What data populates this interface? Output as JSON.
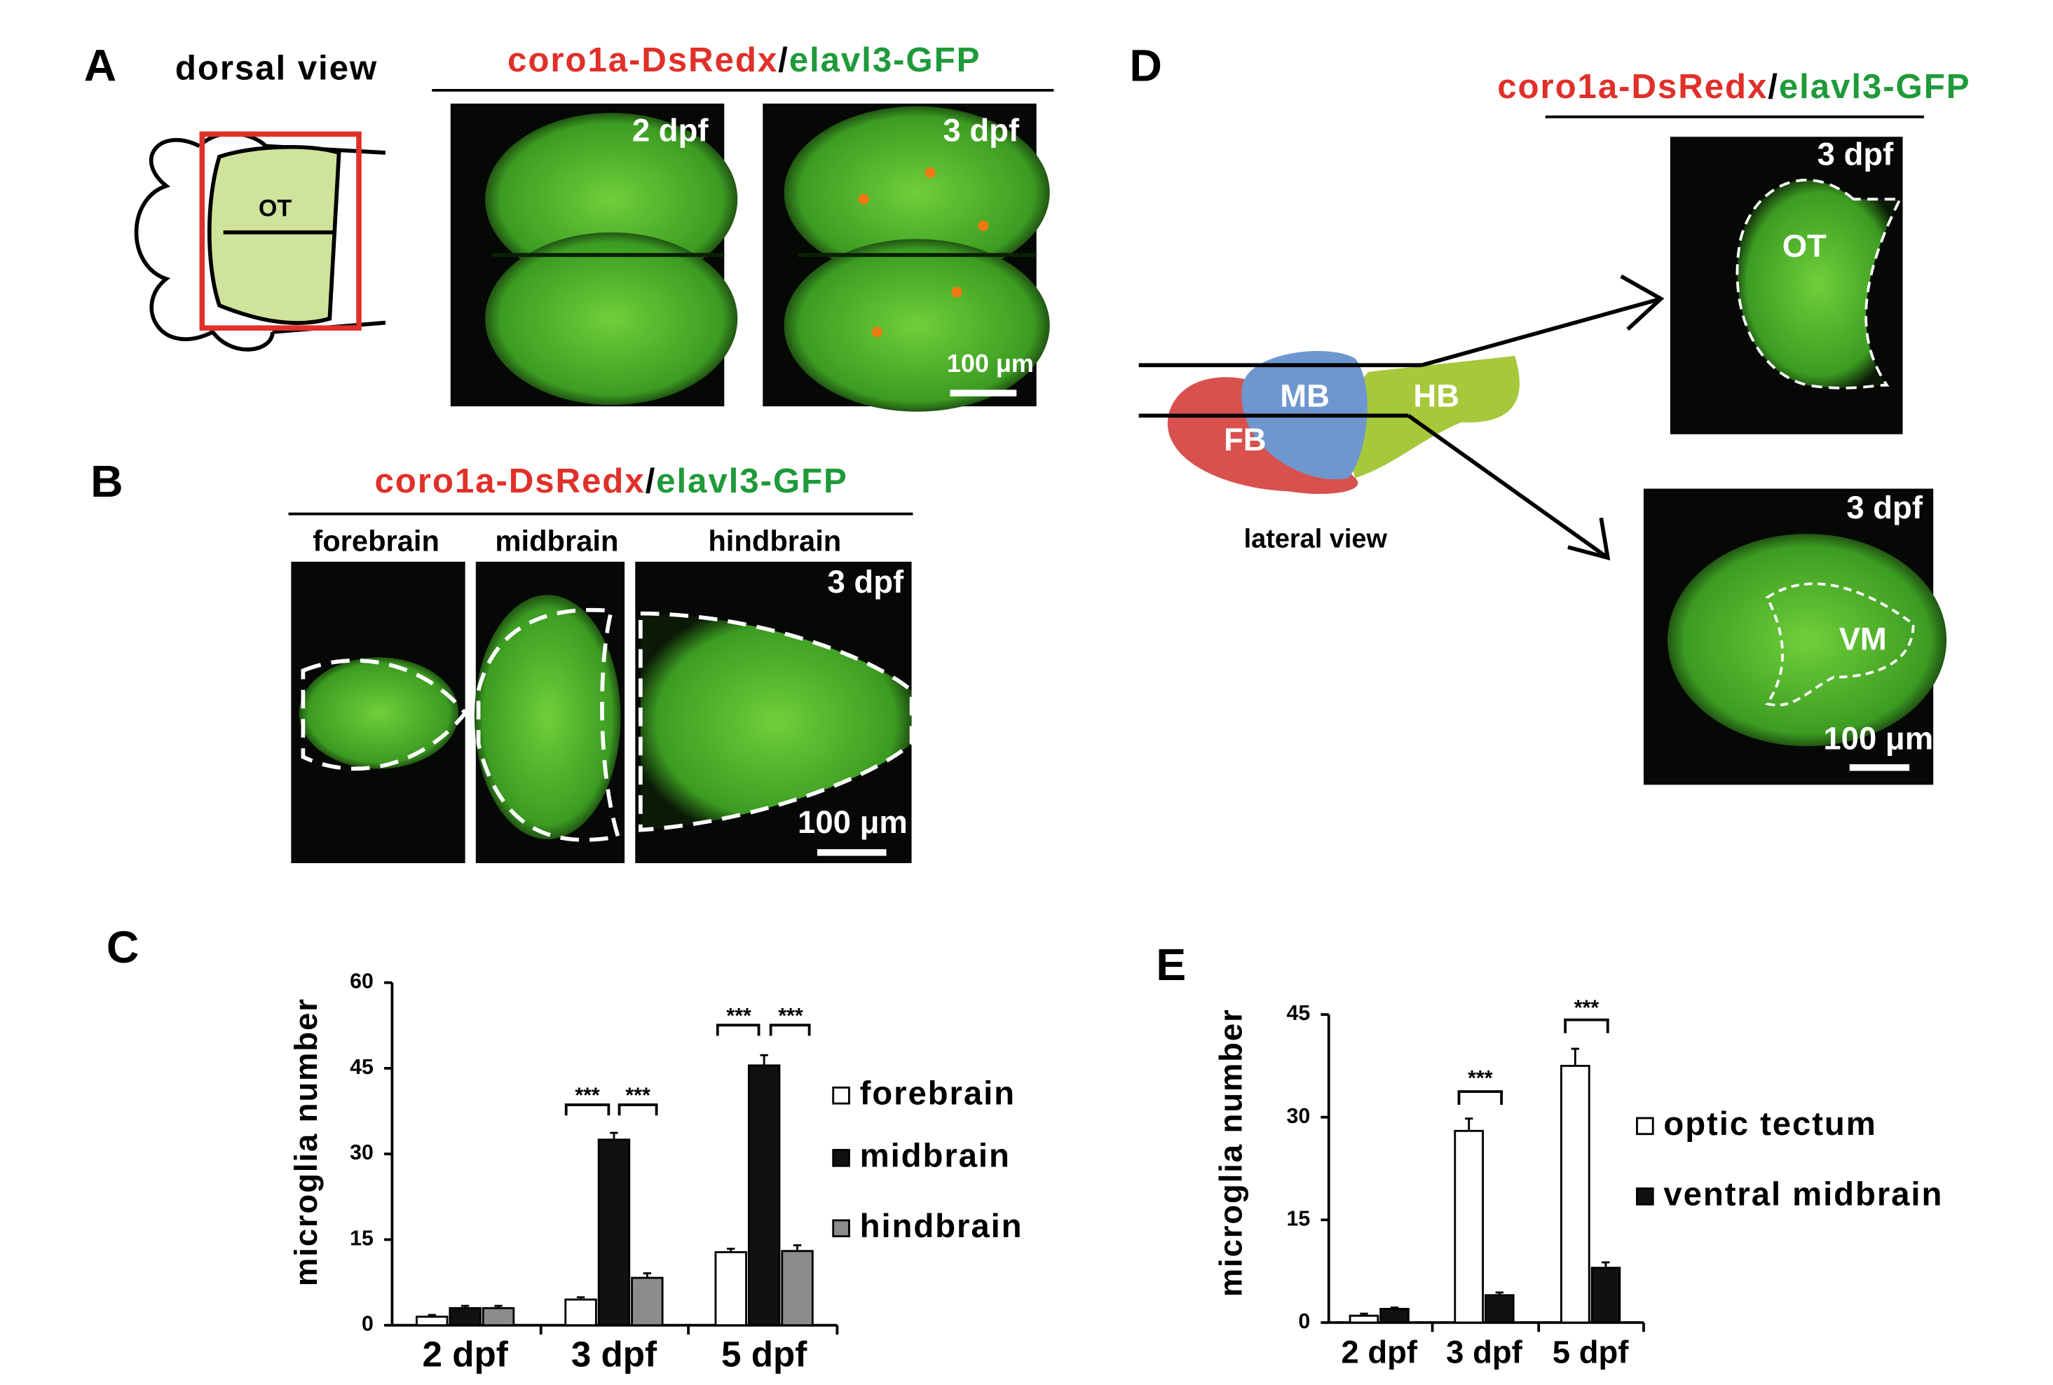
{
  "panels": {
    "A": {
      "label": "A",
      "view": "dorsal view",
      "red": "coro1a-DsRedx",
      "sep": "/",
      "green": "elavl3-GFP",
      "images": [
        "2 dpf",
        "3 dpf"
      ],
      "scale": "100 μm",
      "region": "OT"
    },
    "B": {
      "label": "B",
      "red": "coro1a-DsRedx",
      "sep": "/",
      "green": "elavl3-GFP",
      "regions": [
        "forebrain",
        "midbrain",
        "hindbrain"
      ],
      "stage": "3 dpf",
      "scale": "100 μm"
    },
    "C": {
      "label": "C"
    },
    "D": {
      "label": "D",
      "red": "coro1a-DsRedx",
      "sep": "/",
      "green": "elavl3-GFP",
      "parts": [
        "MB",
        "HB",
        "FB"
      ],
      "view": "lateral view",
      "top_stage": "3 dpf",
      "top_region": "OT",
      "bottom_stage": "3 dpf",
      "bottom_region": "VM",
      "scale": "100 μm"
    },
    "E": {
      "label": "E"
    }
  },
  "chart_data": [
    {
      "type": "bar",
      "ylabel": "microglia number",
      "categories": [
        "2 dpf",
        "3 dpf",
        "5 dpf"
      ],
      "series": [
        {
          "name": "forebrain",
          "color": "#ffffff",
          "values": [
            1.5,
            4.5,
            12.8
          ],
          "errors": [
            0.3,
            0.4,
            0.6
          ]
        },
        {
          "name": "midbrain",
          "color": "#111111",
          "values": [
            3,
            32.5,
            45.5
          ],
          "errors": [
            0.4,
            1.2,
            1.8
          ]
        },
        {
          "name": "hindbrain",
          "color": "#8c8c8c",
          "values": [
            3,
            8.3,
            13
          ],
          "errors": [
            0.4,
            0.8,
            1.0
          ]
        }
      ],
      "ylim": [
        0,
        60
      ],
      "yticks": [
        0,
        15,
        30,
        45,
        60
      ],
      "annotations": [
        "***",
        "***",
        "***",
        "***"
      ]
    },
    {
      "type": "bar",
      "ylabel": "microglia number",
      "categories": [
        "2 dpf",
        "3 dpf",
        "5 dpf"
      ],
      "series": [
        {
          "name": "optic tectum",
          "color": "#ffffff",
          "values": [
            1,
            28,
            37.5
          ],
          "errors": [
            0.3,
            1.8,
            2.5
          ]
        },
        {
          "name": "ventral midbrain",
          "color": "#111111",
          "values": [
            2,
            4,
            8
          ],
          "errors": [
            0.2,
            0.4,
            0.8
          ]
        }
      ],
      "ylim": [
        0,
        45
      ],
      "yticks": [
        0,
        15,
        30,
        45
      ],
      "annotations": [
        "***",
        "***"
      ]
    }
  ]
}
